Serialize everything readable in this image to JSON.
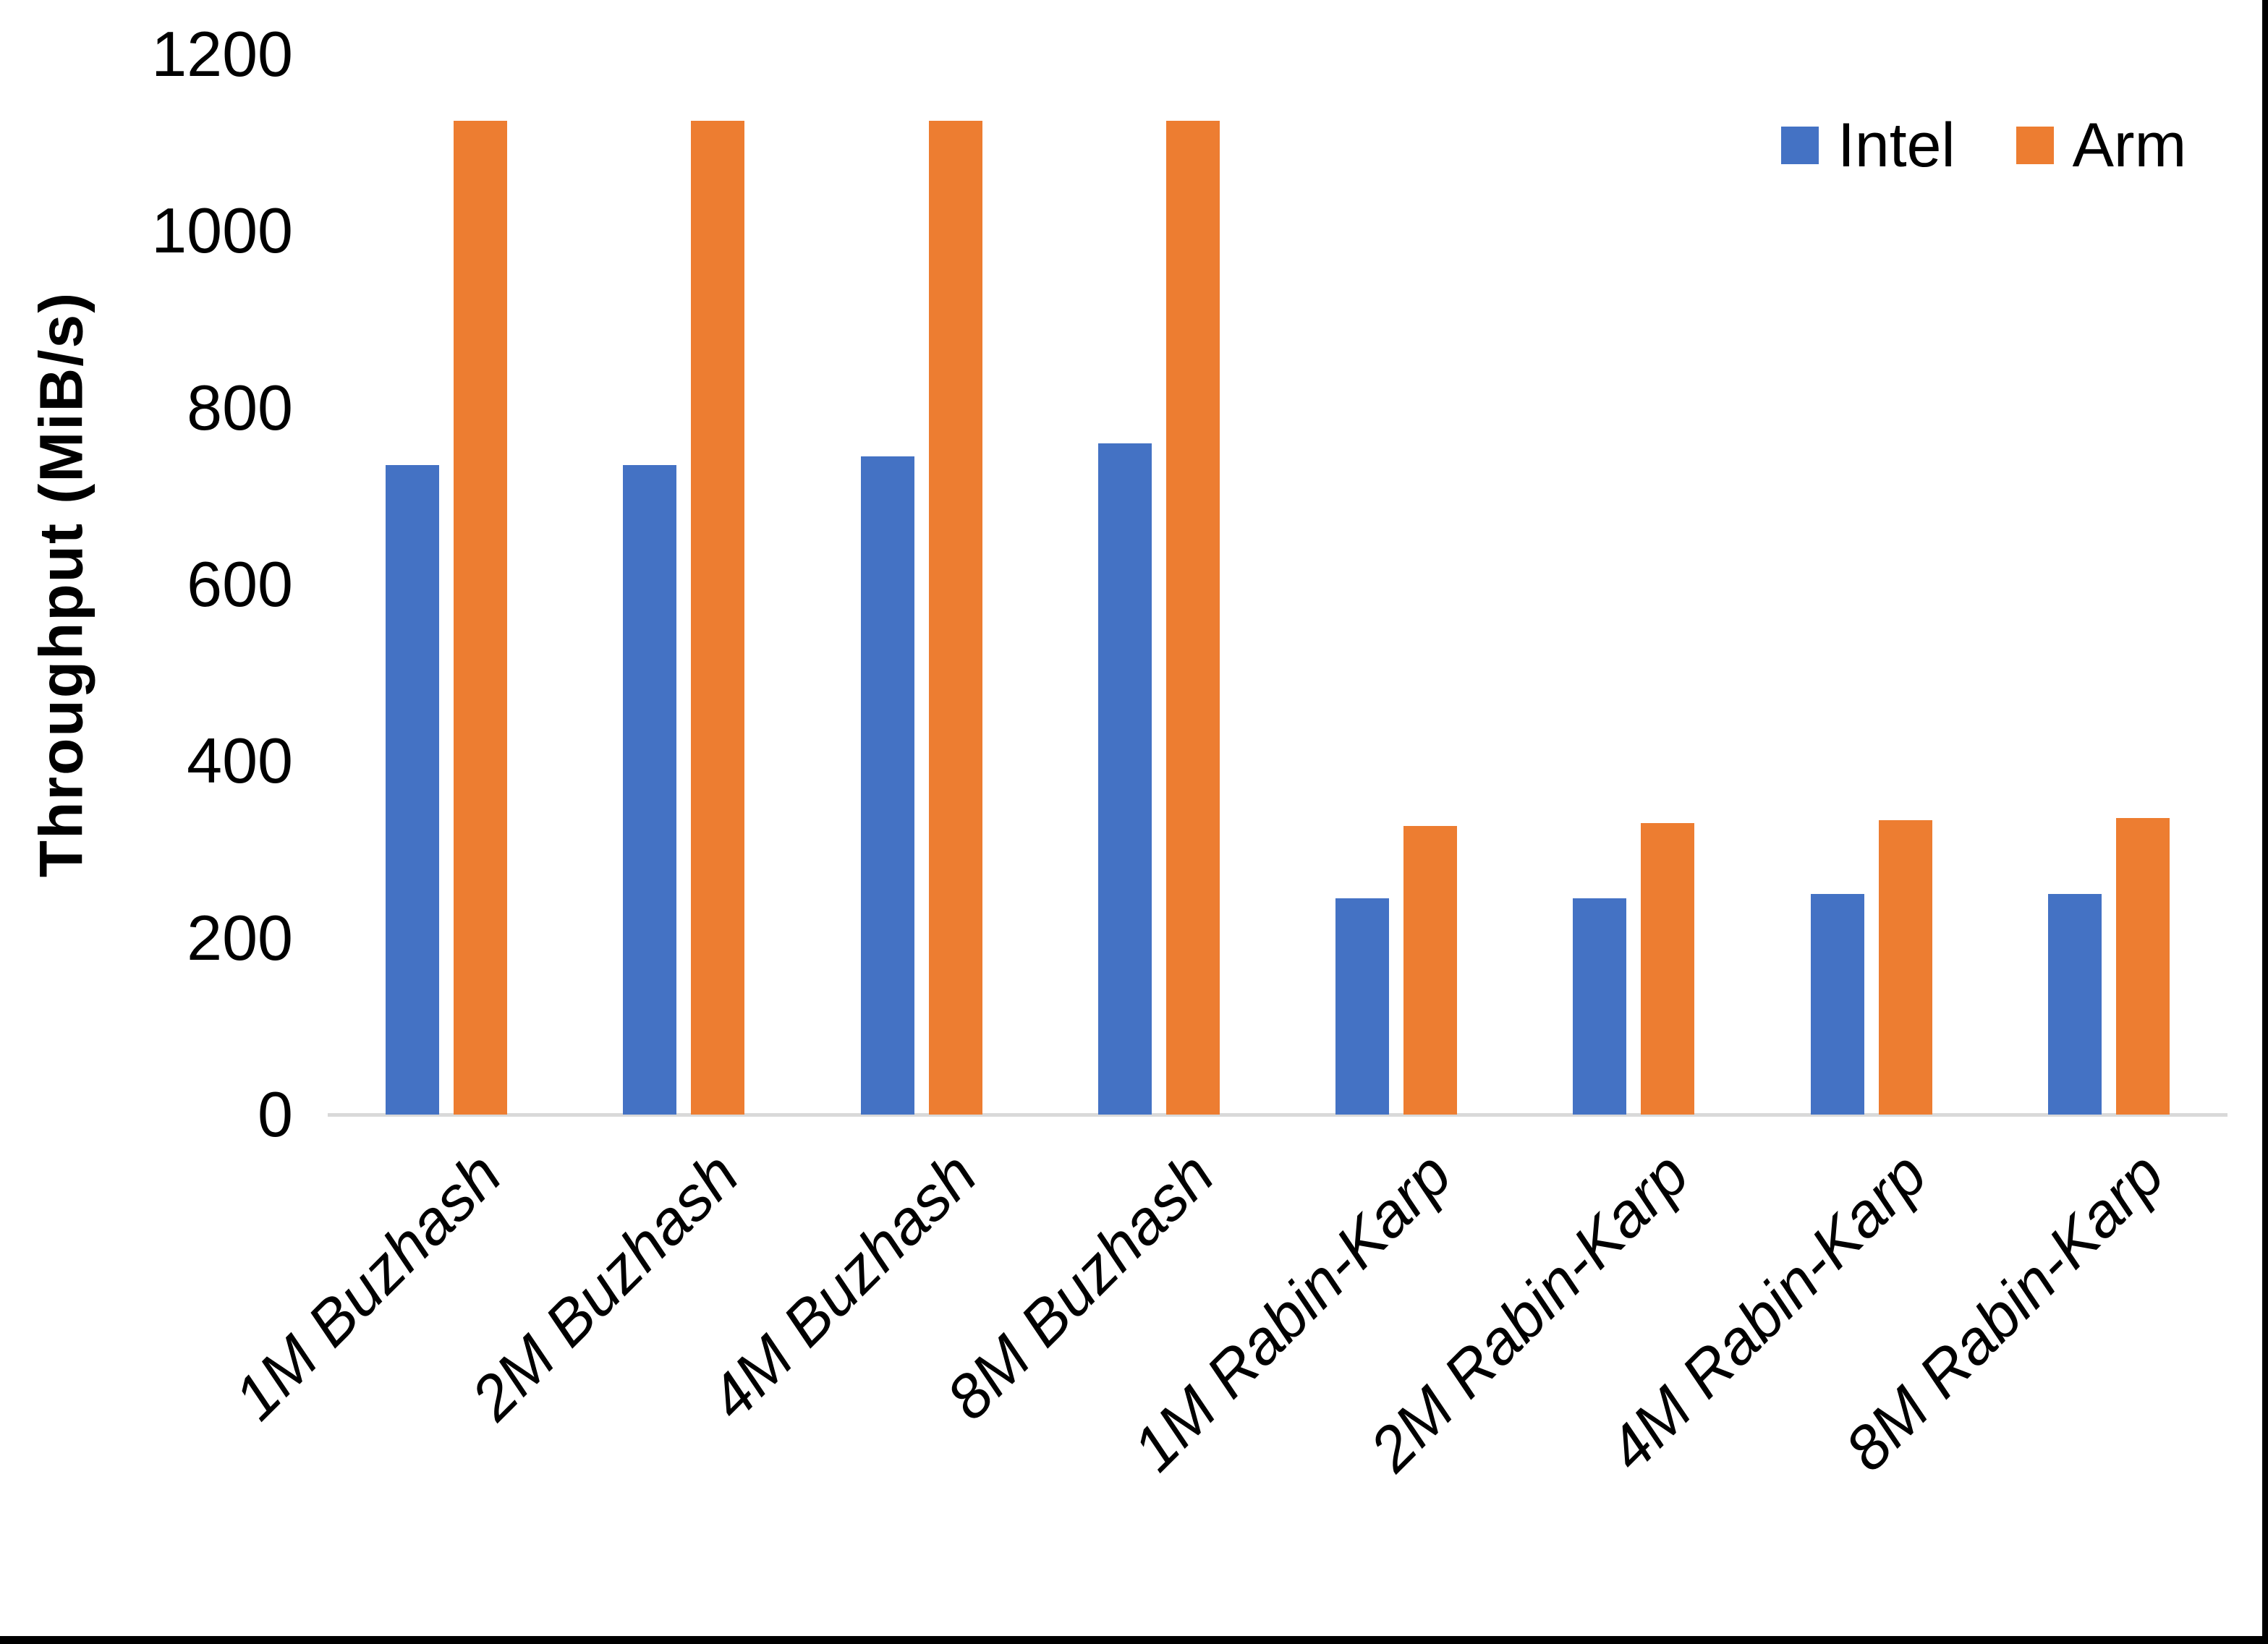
{
  "chart_data": {
    "type": "bar",
    "title": "",
    "xlabel": "",
    "ylabel": "Throughput (MiB/s)",
    "ylim": [
      0,
      1200
    ],
    "yticks": [
      0,
      200,
      400,
      600,
      800,
      1000,
      1200
    ],
    "grid": false,
    "legend_position": "top-right",
    "categories": [
      "1M Buzhash",
      "2M Buzhash",
      "4M Buzhash",
      "8M Buzhash",
      "1M Rabin-Karp",
      "2M Rabin-Karp",
      "4M Rabin-Karp",
      "8M Rabin-Karp"
    ],
    "series": [
      {
        "name": "Intel",
        "color": "#4472C4",
        "values": [
          735,
          735,
          745,
          760,
          245,
          245,
          250,
          250
        ]
      },
      {
        "name": "Arm",
        "color": "#ED7D31",
        "values": [
          1125,
          1125,
          1125,
          1125,
          327,
          330,
          333,
          336
        ]
      }
    ]
  },
  "colors": {
    "background": "#FFFFFF",
    "axis_line": "#D9D9D9",
    "label_text": "#000000",
    "screen_edge": "#000000"
  }
}
